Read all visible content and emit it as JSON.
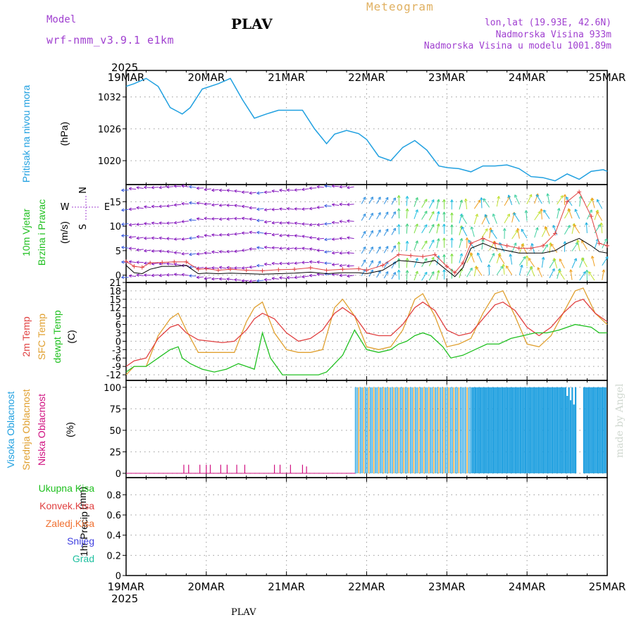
{
  "header": {
    "model_label": "Model",
    "model_name": "wrf-nmm_v3.9.1 e1km",
    "station": "PLAV",
    "meteogram": "Meteogram",
    "lonlat": "lon,lat (19.93E, 42.6N)",
    "elevation": "Nadmorska Visina 933m",
    "model_elevation": "Nadmorska Visina u modelu 1001.89m",
    "year_top": "2025",
    "year_bottom": "2025",
    "footer_station": "PLAV",
    "made_by": "made by Angel"
  },
  "dates": [
    "19MAR",
    "20MAR",
    "21MAR",
    "22MAR",
    "23MAR",
    "24MAR",
    "25MAR"
  ],
  "colors": {
    "pressure": "#20a0e0",
    "temp2m": "#e04040",
    "sfc": "#e0a030",
    "dewpt": "#20c020",
    "wind_speed": "#000000",
    "gust": "#e04040",
    "high_cloud": "#20a0e0",
    "mid_cloud": "#e0a030",
    "low_cloud": "#d01080",
    "total_precip": "#20c020",
    "conv_precip": "#e04040",
    "frz_precip": "#f07030",
    "snow": "#4040e0",
    "hail": "#20c0a0",
    "model_text": "#a040d0"
  },
  "chart_data": [
    {
      "type": "line",
      "id": "pressure",
      "ylabel_a": "Pritisak na nivou mora",
      "ylabel_b": "(hPa)",
      "yticks": [
        1020,
        1026,
        1032
      ],
      "ylim": [
        1015.5,
        1037
      ],
      "x_days": [
        0,
        0.1,
        0.25,
        0.4,
        0.55,
        0.7,
        0.8,
        0.95,
        1.15,
        1.3,
        1.45,
        1.6,
        1.75,
        1.9,
        2.05,
        2.2,
        2.35,
        2.5,
        2.6,
        2.75,
        2.9,
        3.0,
        3.15,
        3.3,
        3.45,
        3.6,
        3.75,
        3.9,
        4.0,
        4.15,
        4.3,
        4.45,
        4.6,
        4.75,
        4.9,
        5.05,
        5.2,
        5.35,
        5.5,
        5.65,
        5.8,
        5.95,
        6.0
      ],
      "values": [
        1034,
        1034.5,
        1035.5,
        1034,
        1030,
        1028.8,
        1030,
        1033.5,
        1034.5,
        1035.5,
        1031.5,
        1028,
        1028.8,
        1029.5,
        1029.5,
        1029.5,
        1026,
        1023.2,
        1025,
        1025.7,
        1025.1,
        1024,
        1020.8,
        1020,
        1022.5,
        1023.8,
        1022,
        1019,
        1018.7,
        1018.5,
        1017.9,
        1019,
        1019,
        1019.2,
        1018.5,
        1017,
        1016.8,
        1016.2,
        1017.5,
        1016.5,
        1018,
        1018.3,
        1018
      ]
    },
    {
      "type": "line",
      "id": "wind",
      "ylabel_a": "10m Vjetar",
      "ylabel_b": "Brzina i Pravac",
      "ylabel_c": "(m/s)",
      "compass": {
        "n": "N",
        "s": "S",
        "w": "W",
        "e": "E"
      },
      "yticks": [
        0,
        5,
        10,
        15
      ],
      "ylim": [
        -1.5,
        18.5
      ],
      "series": [
        {
          "role": "speed",
          "x": [
            0,
            0.1,
            0.2,
            0.3,
            0.45,
            0.6,
            0.75,
            0.9,
            1.0,
            1.15,
            1.3,
            1.5,
            1.7,
            1.9,
            2.1,
            2.3,
            2.5,
            2.7,
            2.9,
            3.0,
            3.2,
            3.4,
            3.55,
            3.7,
            3.85,
            4.0,
            4.1,
            4.2,
            4.3,
            4.45,
            4.6,
            4.75,
            4.9,
            5.05,
            5.2,
            5.35,
            5.5,
            5.65,
            5.8,
            5.9,
            6.0
          ],
          "values": [
            2,
            0.5,
            0.3,
            1.2,
            1.8,
            1.8,
            2.0,
            0.3,
            0.4,
            0.3,
            0.4,
            0.3,
            0.2,
            0.3,
            0.4,
            0.6,
            0.3,
            0.5,
            0.5,
            0.3,
            1.0,
            3.0,
            2.8,
            2.5,
            3.0,
            1.0,
            -0.3,
            1.5,
            5.5,
            6.5,
            5.5,
            5.0,
            4.5,
            4.5,
            4.5,
            5.0,
            6.5,
            7.5,
            6.0,
            4.8,
            4.5
          ]
        },
        {
          "role": "gust",
          "x": [
            0,
            0.1,
            0.2,
            0.3,
            0.45,
            0.6,
            0.75,
            0.9,
            1.0,
            1.15,
            1.3,
            1.5,
            1.7,
            1.9,
            2.1,
            2.3,
            2.5,
            2.7,
            2.9,
            3.0,
            3.2,
            3.4,
            3.55,
            3.7,
            3.85,
            4.0,
            4.1,
            4.2,
            4.3,
            4.45,
            4.6,
            4.75,
            4.9,
            5.05,
            5.2,
            5.35,
            5.5,
            5.65,
            5.8,
            5.9,
            6.0
          ],
          "values": [
            2.8,
            1.8,
            1.6,
            2.5,
            2.6,
            2.7,
            2.7,
            1.2,
            1.3,
            1.0,
            1.2,
            1.0,
            0.9,
            1.1,
            1.2,
            1.5,
            1.0,
            1.2,
            1.3,
            1.0,
            2.0,
            4.2,
            4.0,
            3.8,
            4.2,
            1.8,
            0.5,
            2.5,
            6.5,
            7.5,
            6.5,
            6.0,
            5.5,
            5.5,
            6.0,
            8.5,
            15,
            17,
            12,
            6.5,
            6.0
          ]
        }
      ]
    },
    {
      "type": "line",
      "id": "temperature",
      "ylabel_a": "2m Temp",
      "ylabel_b": "SFC Temp",
      "ylabel_c": "dewpt Temp",
      "ylabel_d": "(C)",
      "yticks": [
        -12,
        -9,
        -6,
        -3,
        0,
        3,
        6,
        9,
        12,
        15,
        18,
        21
      ],
      "ylim": [
        -14,
        21
      ],
      "series": [
        {
          "name": "2m Temp",
          "x": [
            0,
            0.1,
            0.25,
            0.4,
            0.55,
            0.65,
            0.75,
            0.9,
            1.05,
            1.2,
            1.35,
            1.5,
            1.6,
            1.7,
            1.85,
            2.0,
            2.15,
            2.3,
            2.45,
            2.6,
            2.7,
            2.85,
            3.0,
            3.15,
            3.3,
            3.45,
            3.6,
            3.7,
            3.85,
            4.0,
            4.15,
            4.3,
            4.45,
            4.6,
            4.7,
            4.85,
            5.0,
            5.15,
            5.3,
            5.45,
            5.6,
            5.7,
            5.85,
            6.0
          ],
          "values": [
            -9,
            -7,
            -6,
            1,
            5,
            6,
            3,
            0.5,
            0,
            -0.5,
            0,
            4,
            8,
            10,
            8,
            3,
            0,
            1,
            4,
            10,
            12,
            9,
            3,
            2,
            2,
            6,
            12,
            14,
            11,
            4,
            2,
            3,
            8,
            13,
            14,
            11,
            5,
            2,
            5,
            10,
            14,
            15,
            10,
            7
          ]
        },
        {
          "name": "SFC Temp",
          "x": [
            0,
            0.1,
            0.25,
            0.4,
            0.55,
            0.65,
            0.75,
            0.9,
            1.05,
            1.2,
            1.35,
            1.5,
            1.6,
            1.7,
            1.85,
            2.0,
            2.15,
            2.3,
            2.45,
            2.6,
            2.7,
            2.85,
            3.0,
            3.15,
            3.3,
            3.45,
            3.6,
            3.7,
            3.85,
            4.0,
            4.15,
            4.3,
            4.45,
            4.6,
            4.7,
            4.85,
            5.0,
            5.15,
            5.3,
            5.45,
            5.6,
            5.7,
            5.85,
            6.0
          ],
          "values": [
            -12,
            -9,
            -9,
            2,
            8,
            10,
            4,
            -4,
            -4,
            -4,
            -4,
            7,
            12,
            14,
            3,
            -3,
            -4,
            -4,
            -3,
            12,
            15,
            9,
            -2,
            -3,
            -2,
            4,
            15,
            17,
            9,
            -2,
            -1,
            1,
            10,
            17,
            18,
            9,
            -1,
            -2,
            2,
            10,
            18,
            19,
            10,
            6
          ]
        },
        {
          "name": "dewpt Temp",
          "x": [
            0,
            0.1,
            0.25,
            0.4,
            0.55,
            0.65,
            0.7,
            0.8,
            0.95,
            1.1,
            1.25,
            1.4,
            1.5,
            1.6,
            1.7,
            1.8,
            1.95,
            2.1,
            2.25,
            2.4,
            2.5,
            2.6,
            2.7,
            2.85,
            3.0,
            3.15,
            3.3,
            3.4,
            3.5,
            3.6,
            3.7,
            3.8,
            3.95,
            4.05,
            4.2,
            4.35,
            4.5,
            4.65,
            4.8,
            4.95,
            5.1,
            5.25,
            5.4,
            5.6,
            5.8,
            5.9,
            6.0
          ],
          "values": [
            -11,
            -9,
            -9,
            -6,
            -3,
            -2,
            -6,
            -8,
            -10,
            -11,
            -10,
            -8,
            -9,
            -10,
            3,
            -6,
            -12,
            -12,
            -12,
            -12,
            -11,
            -8,
            -5,
            4,
            -3,
            -4,
            -3,
            -1,
            0,
            2,
            3,
            2,
            -2,
            -6,
            -5,
            -3,
            -1,
            -1,
            1,
            2,
            3,
            3,
            4,
            6,
            5,
            3,
            3
          ]
        }
      ]
    },
    {
      "type": "bar",
      "id": "cloud",
      "ylabel_a": "Visoka Oblacnost",
      "ylabel_b": "Srednja Oblacnost",
      "ylabel_c": "Niska Oblacnost",
      "ylabel_d": "(%)",
      "yticks": [
        0,
        25,
        50,
        75,
        100
      ],
      "ylim": [
        -5,
        108
      ],
      "low_x_days": [
        0.72,
        0.78,
        0.92,
        1.0,
        1.05,
        1.18,
        1.26,
        1.38,
        1.48,
        1.85,
        1.92,
        2.05,
        2.2,
        2.25
      ],
      "low_values": [
        10,
        10,
        10,
        10,
        10,
        10,
        10,
        10,
        10,
        10,
        10,
        10,
        10,
        8
      ],
      "dense_x_range_days": [
        2.86,
        6.0
      ],
      "gaps_x_days": [
        [
          5.62,
          5.7
        ]
      ],
      "tail_values_x_days": [
        5.5,
        5.54,
        5.58
      ],
      "tail_values": [
        90,
        85,
        80
      ]
    },
    {
      "type": "bar",
      "id": "precip",
      "ylabel_a": "1hr Precip",
      "ylabel_b": "(mm)",
      "legend": [
        "Ukupna Kisa",
        "Konvek.Kisa",
        "Zaledj.Kisa",
        "Snijeg",
        "Grad"
      ],
      "yticks": [
        0,
        0.2,
        0.4,
        0.6,
        0.8
      ],
      "ylim": [
        0,
        0.97
      ],
      "values": []
    }
  ]
}
